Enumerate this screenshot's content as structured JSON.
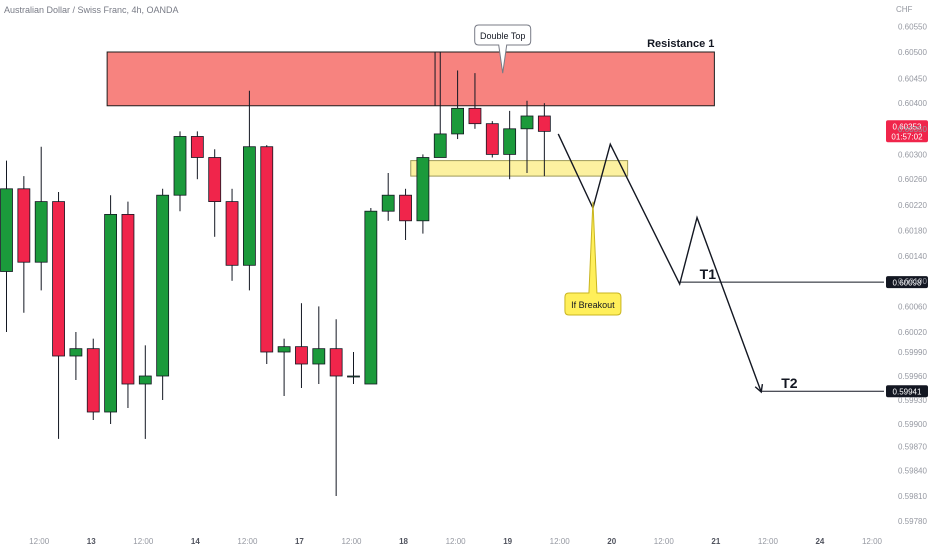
{
  "header": {
    "symbol": "Australian Dollar / Swiss Franc, 4h, OANDA",
    "currency": "CHF"
  },
  "chart_data": {
    "type": "candlestick",
    "price_axis": {
      "ticks": [
        "0.60550",
        "0.60500",
        "0.60450",
        "0.60400",
        "0.60350",
        "0.60300",
        "0.60260",
        "0.60220",
        "0.60180",
        "0.60140",
        "0.60100",
        "0.60060",
        "0.60020",
        "0.59990",
        "0.59960",
        "0.59930",
        "0.59900",
        "0.59870",
        "0.59840",
        "0.59810",
        "0.59780"
      ],
      "tick_values": [
        0.6055,
        0.605,
        0.6045,
        0.604,
        0.6035,
        0.603,
        0.6026,
        0.6022,
        0.6018,
        0.6014,
        0.601,
        0.6006,
        0.6002,
        0.5999,
        0.5996,
        0.5993,
        0.599,
        0.5987,
        0.5984,
        0.5981,
        0.5978
      ]
    },
    "time_axis": {
      "labels": [
        "12:00",
        "13",
        "12:00",
        "14",
        "12:00",
        "17",
        "12:00",
        "18",
        "12:00",
        "19",
        "12:00",
        "20",
        "12:00",
        "21",
        "12:00",
        "24",
        "12:00"
      ],
      "bar_index": [
        2,
        5,
        8,
        11,
        14,
        17,
        20,
        23,
        26,
        29,
        32,
        35,
        38,
        41,
        44,
        47,
        50
      ],
      "bold": [
        "13",
        "14",
        "17",
        "18",
        "19",
        "20",
        "21",
        "24"
      ]
    },
    "bullish_color": "#1b9a3b",
    "bearish_color": "#f0254b",
    "candles": [
      {
        "o": 0.60115,
        "h": 0.6029,
        "l": 0.6002,
        "c": 0.60245
      },
      {
        "o": 0.60245,
        "h": 0.60265,
        "l": 0.6005,
        "c": 0.6013
      },
      {
        "o": 0.6013,
        "h": 0.60315,
        "l": 0.60085,
        "c": 0.60225
      },
      {
        "o": 0.60225,
        "h": 0.6024,
        "l": 0.5988,
        "c": 0.59985
      },
      {
        "o": 0.59985,
        "h": 0.6002,
        "l": 0.59955,
        "c": 0.59995
      },
      {
        "o": 0.59995,
        "h": 0.6001,
        "l": 0.59905,
        "c": 0.59915
      },
      {
        "o": 0.59915,
        "h": 0.60235,
        "l": 0.599,
        "c": 0.60205
      },
      {
        "o": 0.60205,
        "h": 0.60225,
        "l": 0.5992,
        "c": 0.5995
      },
      {
        "o": 0.5995,
        "h": 0.6,
        "l": 0.5988,
        "c": 0.5996
      },
      {
        "o": 0.5996,
        "h": 0.60245,
        "l": 0.5993,
        "c": 0.60235
      },
      {
        "o": 0.60235,
        "h": 0.60345,
        "l": 0.6021,
        "c": 0.60335
      },
      {
        "o": 0.60335,
        "h": 0.60345,
        "l": 0.6026,
        "c": 0.60295
      },
      {
        "o": 0.60295,
        "h": 0.6031,
        "l": 0.6017,
        "c": 0.60225
      },
      {
        "o": 0.60225,
        "h": 0.60245,
        "l": 0.601,
        "c": 0.60125
      },
      {
        "o": 0.60125,
        "h": 0.60425,
        "l": 0.60085,
        "c": 0.60315
      },
      {
        "o": 0.60315,
        "h": 0.60318,
        "l": 0.59975,
        "c": 0.5999
      },
      {
        "o": 0.5999,
        "h": 0.6001,
        "l": 0.59935,
        "c": 0.59998
      },
      {
        "o": 0.59998,
        "h": 0.60065,
        "l": 0.59945,
        "c": 0.59975
      },
      {
        "o": 0.59975,
        "h": 0.6006,
        "l": 0.5995,
        "c": 0.59995
      },
      {
        "o": 0.59995,
        "h": 0.6004,
        "l": 0.5981,
        "c": 0.5996
      },
      {
        "o": 0.5996,
        "h": 0.5999,
        "l": 0.5995,
        "c": 0.5996
      },
      {
        "o": 0.5995,
        "h": 0.60215,
        "l": 0.5995,
        "c": 0.6021
      },
      {
        "o": 0.6021,
        "h": 0.6027,
        "l": 0.60195,
        "c": 0.60235
      },
      {
        "o": 0.60235,
        "h": 0.60245,
        "l": 0.60165,
        "c": 0.60195
      },
      {
        "o": 0.60195,
        "h": 0.603,
        "l": 0.60175,
        "c": 0.60295
      },
      {
        "o": 0.60295,
        "h": 0.605,
        "l": 0.603,
        "c": 0.6034
      },
      {
        "o": 0.6034,
        "h": 0.60465,
        "l": 0.6033,
        "c": 0.6039
      },
      {
        "o": 0.6039,
        "h": 0.6046,
        "l": 0.6035,
        "c": 0.6036
      },
      {
        "o": 0.6036,
        "h": 0.60365,
        "l": 0.60295,
        "c": 0.603
      },
      {
        "o": 0.603,
        "h": 0.60385,
        "l": 0.6026,
        "c": 0.6035
      },
      {
        "o": 0.6035,
        "h": 0.60405,
        "l": 0.6027,
        "c": 0.60375
      },
      {
        "o": 0.60375,
        "h": 0.604,
        "l": 0.60265,
        "c": 0.60345
      }
    ],
    "zones": [
      {
        "label": "Resistance 1",
        "bottom": 0.60395,
        "top": 0.605,
        "color": "#f7837f",
        "border": "#1e1e1e",
        "x0": 5.8,
        "x1": 40.8
      },
      {
        "label": "",
        "bottom": 0.60265,
        "top": 0.6029,
        "color": "#fcf1a0",
        "border": "#9e9a58",
        "x0": 23.3,
        "x1": 35.8
      }
    ],
    "double_top_line": {
      "bar": 24.7,
      "from": 0.60395,
      "to": 0.605
    },
    "projection_path": [
      [
        31.8,
        0.6034
      ],
      [
        33.8,
        0.60215
      ],
      [
        34.8,
        0.6032
      ],
      [
        38.8,
        0.60095
      ],
      [
        39.8,
        0.602
      ],
      [
        43.5,
        0.5994
      ]
    ],
    "targets": [
      {
        "label": "T1",
        "price": 0.60098,
        "price_text": "0.60098",
        "from_bar": 38.8
      },
      {
        "label": "T2",
        "price": 0.59941,
        "price_text": "0.59941",
        "from_bar": 43.5
      }
    ],
    "last_price": {
      "value": 0.60353,
      "text": "0.60353",
      "countdown": "01:57:02",
      "color": "#f0254b"
    },
    "callouts": {
      "double_top": {
        "text": "Double Top",
        "tail_bar": 28.6,
        "tail_price": 0.6046
      },
      "if_breakout": {
        "text": "If Breakout",
        "tail_bar": 33.8,
        "tail_price": 0.60225
      }
    }
  }
}
